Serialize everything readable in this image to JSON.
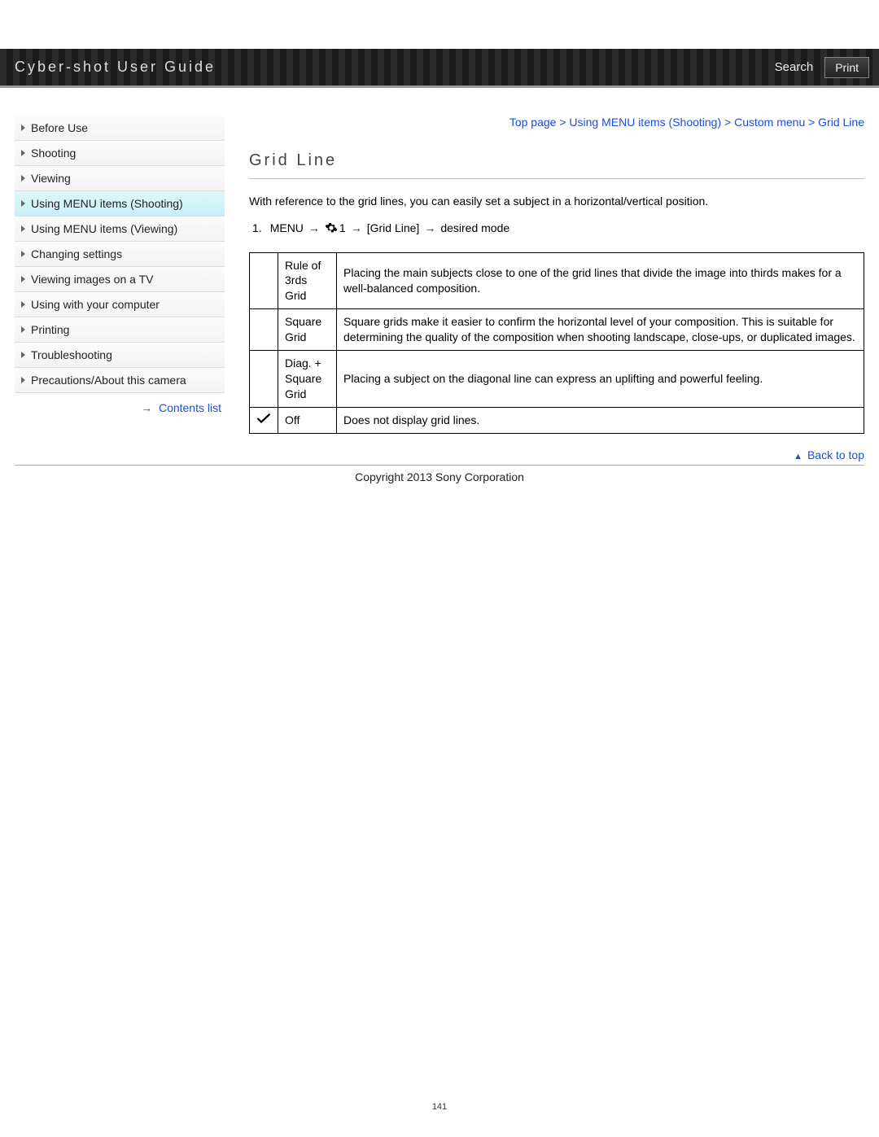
{
  "header": {
    "title": "Cyber-shot User Guide",
    "search_label": "Search",
    "print_label": "Print"
  },
  "sidebar": {
    "items": [
      {
        "label": "Before Use",
        "active": false
      },
      {
        "label": "Shooting",
        "active": false
      },
      {
        "label": "Viewing",
        "active": false
      },
      {
        "label": "Using MENU items (Shooting)",
        "active": true
      },
      {
        "label": "Using MENU items (Viewing)",
        "active": false
      },
      {
        "label": "Changing settings",
        "active": false
      },
      {
        "label": "Viewing images on a TV",
        "active": false
      },
      {
        "label": "Using with your computer",
        "active": false
      },
      {
        "label": "Printing",
        "active": false
      },
      {
        "label": "Troubleshooting",
        "active": false
      },
      {
        "label": "Precautions/About this camera",
        "active": false
      }
    ],
    "contents_list_label": "Contents list"
  },
  "breadcrumb": {
    "parts": [
      "Top page",
      "Using MENU items (Shooting)",
      "Custom menu",
      "Grid Line"
    ],
    "sep": " > "
  },
  "main": {
    "title": "Grid Line",
    "intro": "With reference to the grid lines, you can easily set a subject in a horizontal/vertical position.",
    "step": {
      "num": "1.",
      "menu": "MENU",
      "gear_suffix": "1",
      "gridline": "[Grid Line]",
      "desired": "desired mode"
    },
    "table": {
      "rows": [
        {
          "default": false,
          "name": "Rule of 3rds Grid",
          "desc": "Placing the main subjects close to one of the grid lines that divide the image into thirds makes for a well-balanced composition."
        },
        {
          "default": false,
          "name": "Square Grid",
          "desc": "Square grids make it easier to confirm the horizontal level of your composition. This is suitable for determining the quality of the composition when shooting landscape, close-ups, or duplicated images."
        },
        {
          "default": false,
          "name": "Diag. + Square Grid",
          "desc": "Placing a subject on the diagonal line can express an uplifting and powerful feeling."
        },
        {
          "default": true,
          "name": "Off",
          "desc": "Does not display grid lines."
        }
      ]
    },
    "back_to_top": "Back to top"
  },
  "footer": {
    "copyright": "Copyright 2013 Sony Corporation",
    "page_number": "141"
  },
  "colors": {
    "link": "#1a4fd8",
    "active_nav_bg": "#c9f0f7"
  }
}
